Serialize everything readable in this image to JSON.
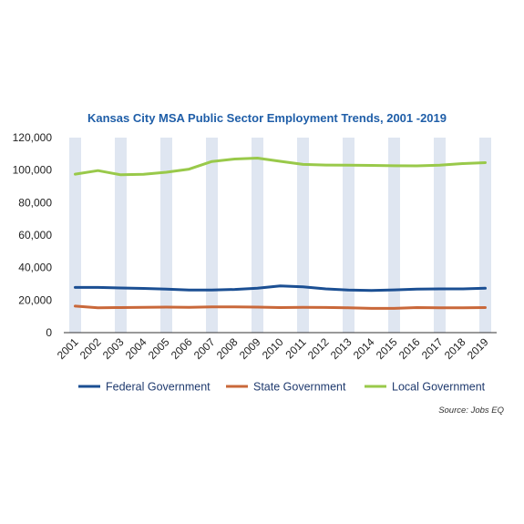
{
  "colors": {
    "title": "#1f5ea8",
    "band": "#dfe6f1",
    "axis": "#333333",
    "federal": "#1b4f93",
    "state": "#c9683a",
    "local": "#99c94a"
  },
  "chart_data": {
    "type": "line",
    "title": "Kansas City MSA Public Sector Employment Trends, 2001 -2019",
    "xlabel": "",
    "ylabel": "",
    "x": [
      "2001",
      "2002",
      "2003",
      "2004",
      "2005",
      "2006",
      "2007",
      "2008",
      "2009",
      "2010",
      "2011",
      "2012",
      "2013",
      "2014",
      "2015",
      "2016",
      "2017",
      "2018",
      "2019"
    ],
    "ylim": [
      0,
      120000
    ],
    "yticks": [
      0,
      20000,
      40000,
      60000,
      80000,
      100000,
      120000
    ],
    "ytick_labels": [
      "0",
      "20,000",
      "40,000",
      "60,000",
      "80,000",
      "100,000",
      "120,000"
    ],
    "grid": false,
    "legend": "bottom",
    "background": "alternating vertical bands",
    "series": [
      {
        "name": "Federal Government",
        "color_key": "federal",
        "values": [
          27800,
          27800,
          27500,
          27200,
          26800,
          26200,
          26200,
          26600,
          27300,
          28700,
          28200,
          26900,
          26200,
          25900,
          26300,
          26800,
          26900,
          26900,
          27300
        ]
      },
      {
        "name": "State Government",
        "color_key": "state",
        "values": [
          16300,
          15300,
          15400,
          15600,
          15700,
          15600,
          15800,
          15800,
          15700,
          15400,
          15600,
          15500,
          15300,
          14900,
          14900,
          15400,
          15300,
          15300,
          15400
        ]
      },
      {
        "name": "Local Government",
        "color_key": "local",
        "values": [
          97500,
          99700,
          97100,
          97400,
          98700,
          100600,
          105300,
          106800,
          107400,
          105400,
          103500,
          103100,
          103000,
          102900,
          102700,
          102600,
          103000,
          104000,
          104600
        ]
      }
    ],
    "source": "Source: Jobs EQ"
  }
}
